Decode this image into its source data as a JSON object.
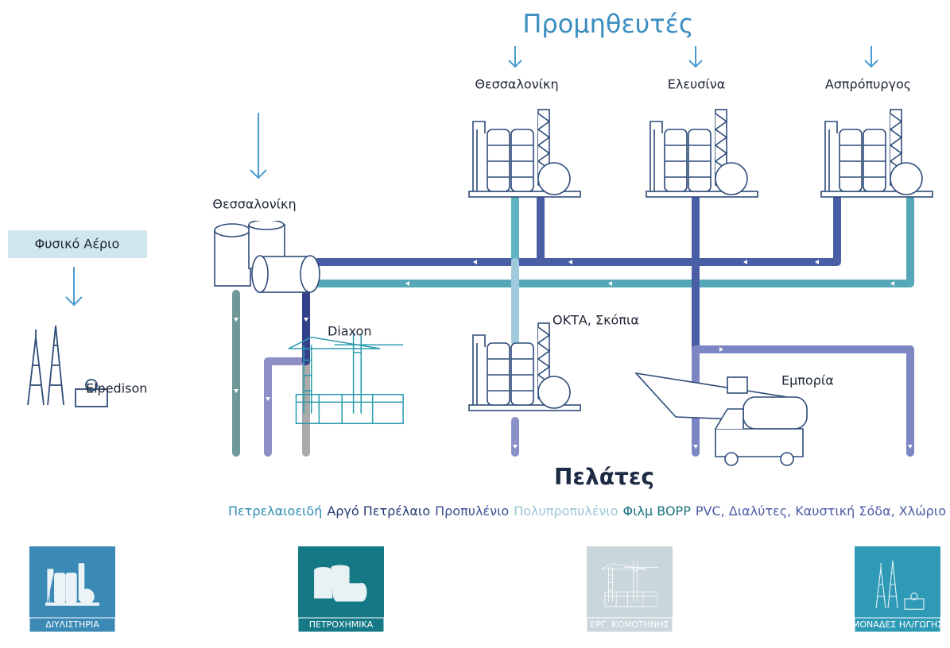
{
  "header": {
    "title": "Προμηθευτές"
  },
  "suppliers": [
    {
      "label": "Θεσσαλονίκη"
    },
    {
      "label": "Ελευσίνα"
    },
    {
      "label": "Ασπρόπυργος"
    }
  ],
  "nodes": {
    "petrochemicals": "Θεσσαλονίκη",
    "natural_gas": "Φυσικό Αέριο",
    "elpedison": "Elpedison",
    "diaxon": "Diaxon",
    "okta": "ΟΚΤΑ, Σκόπια",
    "trade": "Εμπορία"
  },
  "customers": {
    "title": "Πελάτες"
  },
  "products": [
    {
      "label": "Πετρελαιοειδή",
      "color": "#2e8db3"
    },
    {
      "label": "Αργό Πετρέλαιο",
      "color": "#243a73"
    },
    {
      "label": "Προπυλένιο",
      "color": "#3a4f98"
    },
    {
      "label": "Πολυπροπυλένιο",
      "color": "#9cc6d8"
    },
    {
      "label": "Φιλμ BOPP",
      "color": "#16707c"
    },
    {
      "label": "PVC, Διαλύτες, Καυστική Σόδα, Χλώριο",
      "color": "#4e5aa6"
    }
  ],
  "tiles": [
    {
      "label": "ΔΙΥΛΙΣΤΗΡΙΑ",
      "color": "#3a8ab5"
    },
    {
      "label": "ΠΕΤΡΟΧΗΜΙΚΑ",
      "color": "#147985"
    },
    {
      "label": "ΕΡΓ. ΚΟΜΟΤΗΝΗΣ",
      "color": "#c9d6db"
    },
    {
      "label": "ΜΟΝΑΔΕΣ ΗΛ/ΓΩΓΗΣ",
      "color": "#2f9ab6"
    }
  ]
}
